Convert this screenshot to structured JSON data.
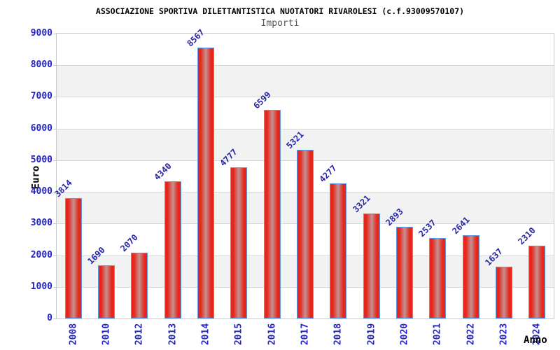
{
  "chart_data": {
    "type": "bar",
    "title": "ASSOCIAZIONE SPORTIVA DILETTANTISTICA NUOTATORI RIVAROLESI (c.f.93009570107)",
    "subtitle": "Importi",
    "xlabel": "Anno",
    "ylabel": "Euro",
    "categories": [
      "2008",
      "2010",
      "2012",
      "2013",
      "2014",
      "2015",
      "2016",
      "2017",
      "2018",
      "2019",
      "2020",
      "2021",
      "2022",
      "2023",
      "2024"
    ],
    "values": [
      3814,
      1690,
      2070,
      4340,
      8567,
      4777,
      6599,
      5321,
      4277,
      3321,
      2893,
      2537,
      2641,
      1637,
      2310
    ],
    "value_labels": [
      "3814",
      "1690",
      "2070",
      "4340",
      "8567",
      "4777",
      "6599",
      "5321",
      "4277",
      "3321",
      "2893",
      "2537",
      "2641",
      "1637",
      "2310"
    ],
    "ylim": [
      0,
      9000
    ],
    "yticks": [
      0,
      1000,
      2000,
      3000,
      4000,
      5000,
      6000,
      7000,
      8000,
      9000
    ],
    "grid": true,
    "legend": false,
    "band_fill_alternating": true,
    "colors": {
      "axis_text": "#2222cc",
      "value_label": "#2525a8",
      "title_text": "#000000",
      "subtitle_text": "#555555",
      "band_gray": "#f2f2f2",
      "gridline": "#d8d8d8",
      "plot_border": "#c9c9c9",
      "bar_border": "#5c9ce6",
      "bar_edge": "#e6261b",
      "bar_center": "#c39191"
    }
  }
}
